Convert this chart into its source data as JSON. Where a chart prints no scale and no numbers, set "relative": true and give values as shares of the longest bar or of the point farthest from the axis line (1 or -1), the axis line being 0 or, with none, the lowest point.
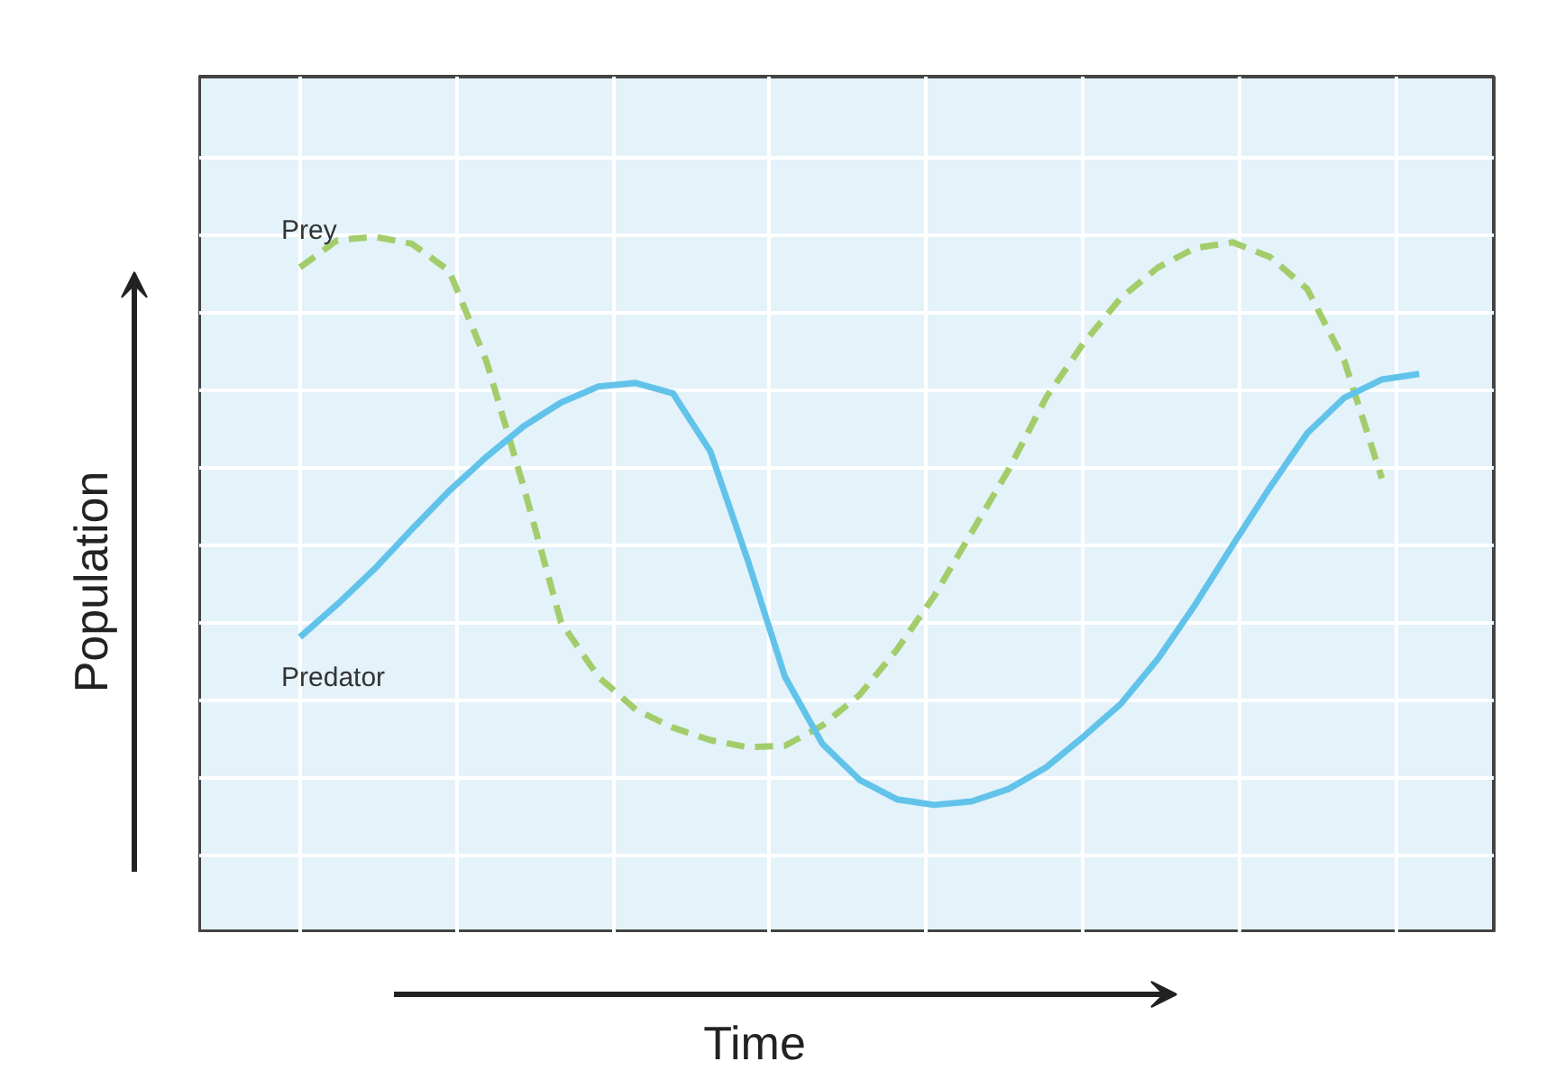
{
  "chart_data": {
    "type": "line",
    "relative": true,
    "xlabel": "Time",
    "ylabel": "Population",
    "grid": true,
    "legend": false,
    "marker": "none",
    "categories": [
      null,
      null,
      null,
      null,
      null,
      null,
      null,
      null,
      null,
      null,
      null,
      null,
      null,
      null,
      null,
      null,
      null,
      null,
      null,
      null,
      null,
      null,
      null,
      null,
      null,
      null,
      null,
      null,
      null,
      null,
      null
    ],
    "series": [
      {
        "name": "Prey",
        "color": "#a3cd6a",
        "line_style": "dashed",
        "values": [
          0.956,
          0.995,
          1.0,
          0.99,
          0.951,
          0.821,
          0.64,
          0.446,
          0.368,
          0.321,
          0.295,
          0.277,
          0.267,
          0.269,
          0.298,
          0.342,
          0.407,
          0.484,
          0.575,
          0.666,
          0.769,
          0.847,
          0.912,
          0.956,
          0.984,
          0.992,
          0.971,
          0.925,
          0.821,
          0.653,
          null
        ]
      },
      {
        "name": "Predator",
        "color": "#62c3ea",
        "line_style": "solid",
        "values": [
          0.425,
          0.472,
          0.523,
          0.58,
          0.635,
          0.684,
          0.728,
          0.762,
          0.785,
          0.79,
          0.775,
          0.692,
          0.536,
          0.368,
          0.272,
          0.22,
          0.192,
          0.184,
          0.189,
          0.207,
          0.238,
          0.282,
          0.329,
          0.394,
          0.472,
          0.557,
          0.64,
          0.718,
          0.769,
          0.795,
          0.803
        ]
      }
    ]
  }
}
